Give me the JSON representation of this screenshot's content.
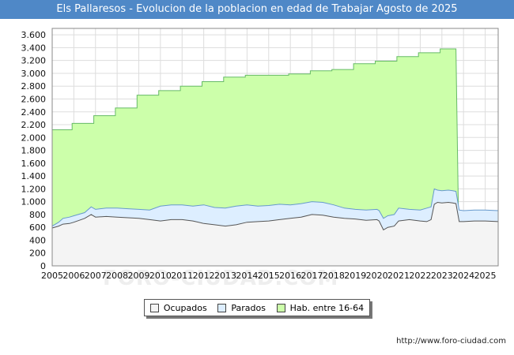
{
  "chart_data": {
    "type": "area",
    "title": "Els Pallaresos - Evolucion de la poblacion en edad de Trabajar Agosto de 2025",
    "xlabel": "",
    "ylabel": "",
    "xlim": [
      2005,
      2025.6
    ],
    "ylim": [
      0,
      3700
    ],
    "yticks": [
      0,
      200,
      400,
      600,
      800,
      1000,
      1200,
      1400,
      1600,
      1800,
      2000,
      2200,
      2400,
      2600,
      2800,
      3000,
      3200,
      3400,
      3600
    ],
    "ytick_labels": [
      "0",
      "200",
      "400",
      "600",
      "800",
      "1.000",
      "1.200",
      "1.400",
      "1.600",
      "1.800",
      "2.000",
      "2.200",
      "2.400",
      "2.600",
      "2.800",
      "3.000",
      "3.200",
      "3.400",
      "3.600"
    ],
    "xticks": [
      2005,
      2006,
      2007,
      2008,
      2009,
      2010,
      2011,
      2012,
      2013,
      2014,
      2015,
      2016,
      2017,
      2018,
      2019,
      2020,
      2021,
      2022,
      2023,
      2024,
      2025
    ],
    "grid": true,
    "legend_position": "bottom-center",
    "series": [
      {
        "name": "Hab. entre 16-64",
        "color": "#ccffaa",
        "line_color": "#66bb66",
        "x": [
          2005,
          2005.92,
          2005.92,
          2006.92,
          2006.92,
          2007.92,
          2007.92,
          2008.92,
          2008.92,
          2009.92,
          2009.92,
          2010.92,
          2010.92,
          2011.92,
          2011.92,
          2012.92,
          2012.92,
          2013.92,
          2013.92,
          2014.92,
          2014.92,
          2015.92,
          2015.92,
          2016.92,
          2016.92,
          2017.92,
          2017.92,
          2018.92,
          2018.92,
          2019.92,
          2019.92,
          2020.92,
          2020.92,
          2021.92,
          2021.92,
          2022.92,
          2022.92,
          2023.65,
          2023.8,
          2025.6
        ],
        "values": [
          2120,
          2120,
          2220,
          2220,
          2340,
          2340,
          2460,
          2460,
          2660,
          2660,
          2730,
          2730,
          2800,
          2800,
          2870,
          2870,
          2940,
          2940,
          2970,
          2970,
          2970,
          2970,
          2990,
          2990,
          3040,
          3040,
          3060,
          3060,
          3150,
          3150,
          3190,
          3190,
          3260,
          3260,
          3320,
          3320,
          3380,
          3380,
          0,
          0
        ]
      },
      {
        "name": "Parados",
        "color": "#ddeeff",
        "line_color": "#6699cc",
        "x": [
          2005,
          2005.3,
          2005.5,
          2005.8,
          2006,
          2006.5,
          2006.8,
          2007,
          2007.5,
          2008,
          2008.5,
          2009,
          2009.5,
          2010,
          2010.5,
          2011,
          2011.5,
          2012,
          2012.5,
          2013,
          2013.5,
          2014,
          2014.5,
          2015,
          2015.5,
          2016,
          2016.5,
          2017,
          2017.5,
          2018,
          2018.5,
          2019,
          2019.5,
          2020,
          2020.1,
          2020.3,
          2020.5,
          2020.8,
          2021,
          2021.5,
          2022,
          2022.3,
          2022.5,
          2022.65,
          2022.8,
          2023,
          2023.3,
          2023.5,
          2023.65,
          2023.8,
          2024,
          2024.5,
          2025,
          2025.6
        ],
        "values": [
          620,
          680,
          740,
          760,
          780,
          830,
          920,
          880,
          900,
          900,
          890,
          880,
          870,
          930,
          950,
          950,
          930,
          950,
          910,
          900,
          930,
          950,
          930,
          940,
          960,
          950,
          970,
          1000,
          990,
          950,
          900,
          880,
          870,
          880,
          860,
          740,
          780,
          800,
          900,
          880,
          870,
          900,
          920,
          1200,
          1180,
          1170,
          1180,
          1170,
          1160,
          870,
          860,
          870,
          870,
          860
        ]
      },
      {
        "name": "Ocupados",
        "color": "#f4f4f4",
        "line_color": "#555555",
        "x": [
          2005,
          2005.3,
          2005.5,
          2005.8,
          2006,
          2006.5,
          2006.8,
          2007,
          2007.5,
          2008,
          2008.5,
          2009,
          2009.5,
          2010,
          2010.5,
          2011,
          2011.5,
          2012,
          2012.5,
          2013,
          2013.5,
          2014,
          2014.5,
          2015,
          2015.5,
          2016,
          2016.5,
          2017,
          2017.5,
          2018,
          2018.5,
          2019,
          2019.5,
          2020,
          2020.1,
          2020.3,
          2020.5,
          2020.8,
          2021,
          2021.5,
          2022,
          2022.3,
          2022.5,
          2022.65,
          2022.8,
          2023,
          2023.3,
          2023.5,
          2023.65,
          2023.8,
          2024,
          2024.5,
          2025,
          2025.6
        ],
        "values": [
          590,
          620,
          650,
          660,
          680,
          740,
          800,
          760,
          770,
          760,
          750,
          740,
          720,
          700,
          720,
          720,
          700,
          660,
          640,
          620,
          640,
          680,
          690,
          700,
          720,
          740,
          760,
          800,
          790,
          760,
          740,
          730,
          710,
          720,
          700,
          560,
          600,
          620,
          700,
          720,
          700,
          690,
          720,
          960,
          990,
          980,
          990,
          980,
          970,
          690,
          690,
          700,
          700,
          690
        ]
      }
    ]
  },
  "legend": {
    "items": [
      {
        "label": "Ocupados",
        "color": "#f4f4f4"
      },
      {
        "label": "Parados",
        "color": "#ddeeff"
      },
      {
        "label": "Hab. entre 16-64",
        "color": "#ccffaa"
      }
    ]
  },
  "source_url": "http://www.foro-ciudad.com",
  "watermark": "FORO-CIUDAD.COM"
}
